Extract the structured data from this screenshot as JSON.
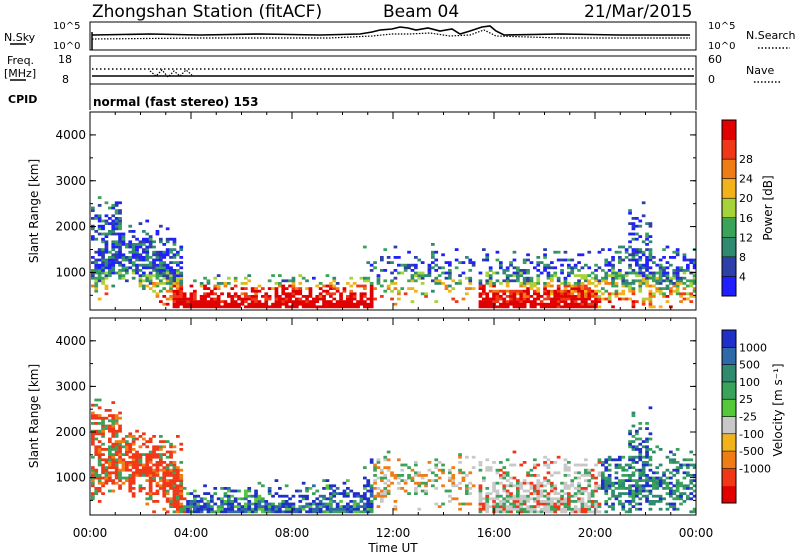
{
  "header": {
    "station": "Zhongshan Station (fitACF)",
    "beam": "Beam 04",
    "date": "21/Mar/2015"
  },
  "panels": {
    "nsky": {
      "left_label": "N.Sky",
      "right_label": "N.Search",
      "left_ticks": [
        "10^5",
        "10^0"
      ],
      "right_ticks": [
        "10^5",
        "10^0"
      ]
    },
    "freq": {
      "left_label_1": "Freq.",
      "left_label_2": "[MHz]",
      "right_label": "Nave",
      "left_ticks": [
        "18",
        "8"
      ],
      "right_ticks": [
        "60",
        "0"
      ]
    },
    "cpid": {
      "label": "CPID",
      "text": "normal (fast stereo) 153"
    }
  },
  "chart_data": [
    {
      "type": "heatmap",
      "title": "",
      "ylabel": "Slant Range [km]",
      "xlabel": "",
      "ylim": [
        180,
        4500
      ],
      "yticks": [
        "1000",
        "2000",
        "3000",
        "4000"
      ],
      "x_tick_labels": [
        "00:00",
        "04:00",
        "08:00",
        "12:00",
        "16:00",
        "20:00",
        "00:00"
      ],
      "colorbar": {
        "label": "Power [dB]",
        "ticks": [
          "4",
          "8",
          "12",
          "16",
          "20",
          "24",
          "28"
        ],
        "colors": [
          "#1f1fff",
          "#2f3fa8",
          "#2f8a6f",
          "#3aa35a",
          "#a6d23a",
          "#f2b21a",
          "#f07c16",
          "#f03818",
          "#e00000"
        ]
      }
    },
    {
      "type": "heatmap",
      "title": "",
      "ylabel": "Slant Range [km]",
      "xlabel": "Time UT",
      "ylim": [
        180,
        4500
      ],
      "yticks": [
        "1000",
        "2000",
        "3000",
        "4000"
      ],
      "x_tick_labels": [
        "00:00",
        "04:00",
        "08:00",
        "12:00",
        "16:00",
        "20:00",
        "00:00"
      ],
      "colorbar": {
        "label": "Velocity [m s⁻¹]",
        "ticks": [
          "1000",
          "500",
          "100",
          "25",
          "-25",
          "-100",
          "-500",
          "-1000"
        ],
        "colors": [
          "#1f2fc8",
          "#2f6aa8",
          "#2f8a6f",
          "#3aa35a",
          "#55c83a",
          "#c8c8c8",
          "#f2b21a",
          "#f07c16",
          "#f03818",
          "#e00000"
        ]
      }
    }
  ]
}
